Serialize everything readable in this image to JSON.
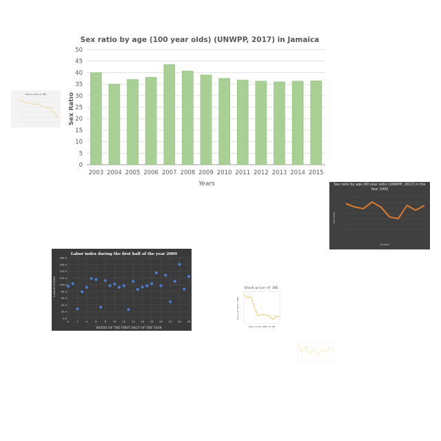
{
  "chart_data": [
    {
      "type": "bar",
      "title": "Sex ratio by age (100 year olds) (UNWPP, 2017) in Jamaica",
      "xlabel": "Years",
      "ylabel": "Sex Ratio",
      "categories": [
        "2003",
        "2004",
        "2005",
        "2006",
        "2007",
        "2008",
        "2009",
        "2010",
        "2011",
        "2012",
        "2013",
        "2014",
        "2015"
      ],
      "values": [
        40,
        35,
        37,
        38,
        43.5,
        40.7,
        39,
        37.5,
        36.8,
        36.3,
        36,
        36.3,
        36.4
      ],
      "ylim": [
        0,
        50
      ],
      "yticks": [
        0,
        5,
        10,
        15,
        20,
        25,
        30,
        35,
        40,
        45,
        50
      ],
      "colors": {
        "bar": "#a8cf94",
        "bar_edge": "#8fbf7b",
        "grid": "#d9d9d9"
      }
    },
    {
      "type": "line",
      "title": "Stock price of IKE",
      "xlabel": "",
      "ylabel": "",
      "x": [
        0,
        1,
        2,
        3,
        4,
        5,
        6,
        7,
        8,
        9,
        10
      ],
      "values": [
        96,
        91,
        88,
        87,
        85,
        86,
        80,
        79,
        78,
        70,
        58
      ],
      "ylim": [
        50,
        100
      ],
      "colors": {
        "line": "#f0d78c"
      }
    },
    {
      "type": "line",
      "title": "Sex ratio by age (40 year olds) (UNWPP, 2017) in the Year 2005",
      "xlabel": "Country",
      "ylabel": "Sex Ratio",
      "values": [
        96,
        94,
        93,
        97,
        94,
        88,
        87,
        95,
        92,
        95
      ],
      "ylim": [
        80,
        100
      ],
      "colors": {
        "line": "#e07a2c",
        "bg": "#404040"
      }
    },
    {
      "type": "scatter",
      "title": "Labor index during the first half of the year 2009",
      "xlabel": "WEEKS OF THE FIRST HALF OF THE YEAR",
      "ylabel": "LABOR INDEX",
      "x": [
        0,
        1,
        2,
        3,
        4,
        5,
        6,
        7,
        8,
        9,
        10,
        11,
        12,
        13,
        14,
        15,
        16,
        17,
        18,
        19,
        20,
        21,
        22,
        23,
        24,
        25,
        26
      ],
      "values": [
        95,
        103,
        28,
        79,
        92,
        118,
        115,
        33,
        112,
        97,
        102,
        92,
        97,
        26,
        110,
        86,
        93,
        97,
        103,
        135,
        97,
        128,
        49,
        110,
        160,
        87,
        124
      ],
      "xlim": [
        0,
        26
      ],
      "ylim": [
        0,
        180
      ],
      "xticks": [
        0,
        2,
        4,
        6,
        8,
        10,
        12,
        14,
        16,
        18,
        20,
        22,
        24,
        26
      ],
      "yticks": [
        "0.0",
        "20.0",
        "40.0",
        "60.0",
        "80.0",
        "100.0",
        "120.0",
        "140.0",
        "160.0",
        "180.0"
      ],
      "colors": {
        "point": "#4a7fd6",
        "bg": "#3a3a3a"
      }
    },
    {
      "type": "line",
      "title": "Stock price of IKE",
      "xlabel": "Days since 2011-11-06",
      "ylabel": "Price of Stock (USD)",
      "x": [
        0,
        1,
        2,
        3,
        4,
        5,
        6,
        7,
        8,
        9,
        10
      ],
      "values": [
        80,
        72,
        75,
        42,
        20,
        25,
        24,
        22,
        10,
        20,
        18
      ],
      "ylim": [
        0,
        90
      ],
      "colors": {
        "line": "#f0cb6a"
      }
    },
    {
      "type": "line",
      "title": "",
      "xlabel": "",
      "ylabel": "",
      "values": [
        48,
        40,
        46,
        38,
        44,
        36,
        42,
        40,
        45,
        41
      ],
      "ylim": [
        30,
        50
      ],
      "colors": {
        "line": "#f2d57a"
      }
    }
  ]
}
